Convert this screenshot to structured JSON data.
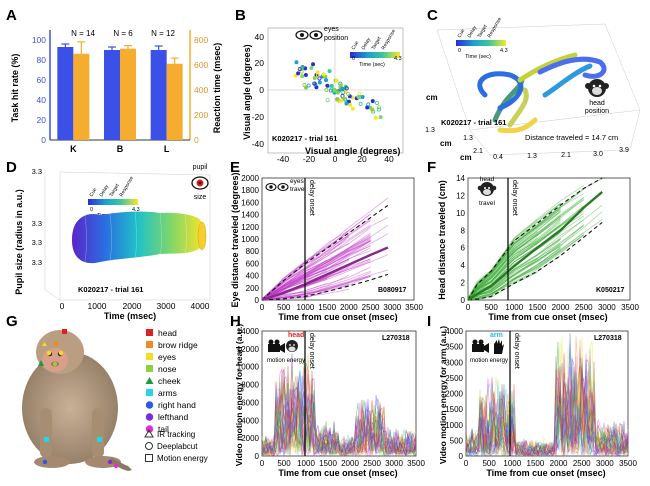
{
  "panels": {
    "A": {
      "letter": "A",
      "ylabel_left": "Task hit rate (%)",
      "ylabel_right": "Reaction time (msec)",
      "n_labels": [
        "N = 14",
        "N = 6",
        "N = 12"
      ],
      "left_ticks": [
        "0",
        "20",
        "40",
        "60",
        "80",
        "100"
      ],
      "right_ticks": [
        "0",
        "200",
        "400",
        "600",
        "800"
      ],
      "colors": {
        "hit": "#3b50e6",
        "rt": "#f6ad2f"
      }
    },
    "B": {
      "letter": "B",
      "xlabel": "Visual angle (degrees)",
      "ylabel": "Visual angle (degrees)",
      "xticks": [
        "-40",
        "-20",
        "0",
        "20",
        "40"
      ],
      "yticks": [
        "40",
        "20",
        "0",
        "-20",
        "-40"
      ],
      "icon_label": "eyes",
      "icon_sub": "position",
      "annotation": "K020217 - trial 161",
      "colorbar_labels": [
        "Cue",
        "Delay",
        "Target",
        "Response"
      ],
      "colorbar_ticks": [
        "0",
        "4.3"
      ],
      "colorbar_title": "Time (sec)"
    },
    "C": {
      "letter": "C",
      "axis_labels": [
        "cm",
        "cm",
        "cm"
      ],
      "ticks_x": [
        "0.4",
        "1.3",
        "2.1",
        "3.0",
        "3.9"
      ],
      "ticks_y": [
        "1.3",
        "2.1"
      ],
      "ticks_z": [
        "1.3"
      ],
      "annotation": "K020217 - trial 161",
      "distance": "Distance traveled = 14.7 cm",
      "icon_label": "head",
      "icon_sub": "position",
      "colorbar_labels": [
        "Cue",
        "Delay",
        "Target",
        "Response"
      ],
      "colorbar_ticks": [
        "0",
        "4.3"
      ],
      "colorbar_title": "Time (sec)"
    },
    "D": {
      "letter": "D",
      "xlabel": "Time (msec)",
      "ylabel": "Pupil size (radius in a.u.)",
      "xticks": [
        "0",
        "1000",
        "2000",
        "3000",
        "4000"
      ],
      "yticks": [
        "3.3",
        "3.3",
        "3.3",
        "3.3"
      ],
      "annotation": "K020217 - trial 161",
      "icon_label": "pupil",
      "icon_sub": "size",
      "colorbar_labels": [
        "Cue",
        "Delay",
        "Target",
        "Response"
      ],
      "colorbar_ticks": [
        "0",
        "4.3"
      ],
      "colorbar_title": "Time (sec)"
    },
    "E": {
      "letter": "E",
      "xlabel": "Time from cue onset (msec)",
      "ylabel": "Eye distance traveled (degrees)",
      "xticks": [
        "0",
        "500",
        "1000",
        "1500",
        "2000",
        "2500",
        "3000",
        "3500"
      ],
      "yticks": [
        "0",
        "200",
        "400",
        "600",
        "800",
        "1000",
        "1200",
        "1400",
        "1600",
        "1800",
        "2000"
      ],
      "icon_label": "eyes",
      "icon_sub": "travel",
      "vline_label": "delay onset",
      "annotation": "B080917",
      "color": "#c23cc8"
    },
    "F": {
      "letter": "F",
      "xlabel": "Time from cue onset (msec)",
      "ylabel": "Head distance traveled (cm)",
      "xticks": [
        "0",
        "500",
        "1000",
        "1500",
        "2000",
        "2500",
        "3000",
        "3500"
      ],
      "yticks": [
        "0",
        "2",
        "4",
        "6",
        "8",
        "10",
        "12",
        "14"
      ],
      "icon_label": "head",
      "icon_sub": "travel",
      "vline_label": "delay onset",
      "annotation": "K050217",
      "color": "#3fae3a"
    },
    "G": {
      "letter": "G",
      "legend": [
        {
          "label": "head",
          "color": "#e02020",
          "shape": "square"
        },
        {
          "label": "brow ridge",
          "color": "#f08a24",
          "shape": "square"
        },
        {
          "label": "eyes",
          "color": "#f3dc22",
          "shape": "square"
        },
        {
          "label": "nose",
          "color": "#8fd13a",
          "shape": "square"
        },
        {
          "label": "cheek",
          "color": "#1d9a3a",
          "shape": "triangle"
        },
        {
          "label": "arms",
          "color": "#24d6e8",
          "shape": "square"
        },
        {
          "label": "right hand",
          "color": "#2a58e8",
          "shape": "circle"
        },
        {
          "label": "lefthand",
          "color": "#7a2be0",
          "shape": "circle"
        },
        {
          "label": "tail",
          "color": "#e22fcf",
          "shape": "circle"
        }
      ],
      "methods": [
        "IR tracking",
        "Deeplabcut",
        "Motion energy"
      ]
    },
    "H": {
      "letter": "H",
      "xlabel": "Time from cue onset (msec)",
      "ylabel": "Video motion energy for head (a.u.)",
      "xticks": [
        "0",
        "500",
        "1000",
        "1500",
        "2000",
        "2500",
        "3000",
        "3500"
      ],
      "yticks": [
        "0",
        "2000",
        "4000",
        "6000",
        "8000",
        "10000",
        "12000",
        "14000"
      ],
      "icon_label": "head",
      "icon_sub": "motion energy",
      "vline_label": "delay onset",
      "annotation": "L270318",
      "label_color": "#e02020"
    },
    "I": {
      "letter": "I",
      "xlabel": "Time from cue onset (msec)",
      "ylabel": "Video motion energy for arm (a.u.)",
      "xticks": [
        "0",
        "500",
        "1000",
        "1500",
        "2000",
        "2500",
        "3000",
        "3500"
      ],
      "yticks": [
        "0",
        "500",
        "1000",
        "1500",
        "2000",
        "2500",
        "3000",
        "3500",
        "4000"
      ],
      "icon_label": "arm",
      "icon_sub": "motion energy",
      "vline_label": "delay onset",
      "annotation": "L270318",
      "label_color": "#24b6e8"
    }
  },
  "chart_data": [
    {
      "panel": "A",
      "type": "bar",
      "categories": [
        "K",
        "B",
        "L"
      ],
      "series": [
        {
          "name": "Task hit rate (%)",
          "values": [
            93,
            90,
            90
          ],
          "errors": [
            3,
            3,
            4
          ],
          "axis": "left"
        },
        {
          "name": "Reaction time (msec)",
          "values": [
            690,
            730,
            610
          ],
          "errors": [
            95,
            25,
            45
          ],
          "axis": "right"
        }
      ],
      "ylim_left": [
        0,
        100
      ],
      "ylim_right": [
        0,
        800
      ]
    },
    {
      "panel": "E",
      "type": "line",
      "x": [
        0,
        500,
        1000,
        1500,
        2000,
        2500,
        2900
      ],
      "series": [
        {
          "name": "mean",
          "values": [
            0,
            120,
            260,
            420,
            580,
            740,
            860
          ]
        },
        {
          "name": "upper",
          "values": [
            0,
            320,
            600,
            850,
            1100,
            1350,
            1550
          ]
        },
        {
          "name": "lower",
          "values": [
            0,
            20,
            60,
            140,
            230,
            330,
            420
          ]
        }
      ],
      "xlim": [
        0,
        3500
      ],
      "ylim": [
        0,
        2000
      ]
    },
    {
      "panel": "F",
      "type": "line",
      "x": [
        0,
        200,
        500,
        1000,
        1500,
        2000,
        2500,
        2900
      ],
      "series": [
        {
          "name": "mean",
          "values": [
            0,
            0.7,
            1.6,
            3.9,
            6.0,
            8.0,
            10.6,
            12.4
          ]
        },
        {
          "name": "upper",
          "values": [
            0,
            1.8,
            3.3,
            6.8,
            8.8,
            10.9,
            12.8,
            14.0
          ]
        },
        {
          "name": "lower",
          "values": [
            0,
            0.1,
            0.4,
            1.9,
            3.3,
            5.1,
            7.2,
            8.9
          ]
        }
      ],
      "xlim": [
        0,
        3500
      ],
      "ylim": [
        0,
        14
      ]
    }
  ]
}
